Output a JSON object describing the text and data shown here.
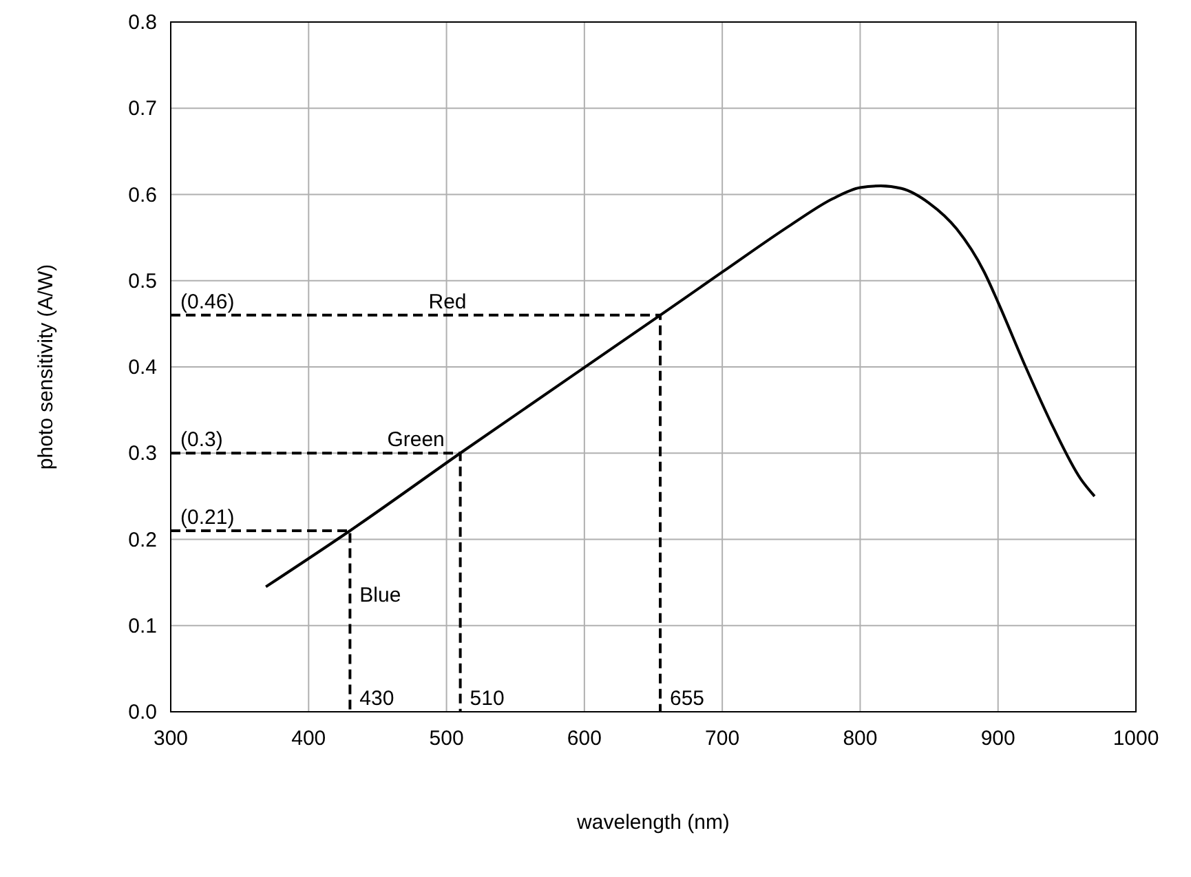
{
  "chart_data": {
    "type": "line",
    "xlabel": "wavelength (nm)",
    "ylabel": "photo sensitivity (A/W)",
    "xlim": [
      300,
      1000
    ],
    "ylim": [
      0,
      0.8
    ],
    "xticks": [
      300,
      400,
      500,
      600,
      700,
      800,
      900,
      1000
    ],
    "yticks": [
      {
        "value": 0,
        "label": "0.0"
      },
      {
        "value": 0.1,
        "label": "0.1"
      },
      {
        "value": 0.2,
        "label": "0.2"
      },
      {
        "value": 0.3,
        "label": "0.3"
      },
      {
        "value": 0.4,
        "label": "0.4"
      },
      {
        "value": 0.5,
        "label": "0.5"
      },
      {
        "value": 0.6,
        "label": "0.6"
      },
      {
        "value": 0.7,
        "label": "0.7"
      },
      {
        "value": 0.8,
        "label": "0.8"
      }
    ],
    "grid": true,
    "series": [
      {
        "color": "#000000",
        "line_style": "solid",
        "x": [
          369,
          430,
          510,
          655,
          700,
          750,
          780,
          800,
          815,
          830,
          850,
          870,
          890,
          900,
          920,
          940,
          960,
          970
        ],
        "values": [
          0.145,
          0.21,
          0.3,
          0.46,
          0.51,
          0.565,
          0.595,
          0.608,
          0.61,
          0.607,
          0.59,
          0.56,
          0.51,
          0.475,
          0.4,
          0.33,
          0.27,
          0.25
        ]
      },
      {
        "color": "#000000",
        "line_style": "dashed",
        "x": [
          300,
          430,
          430
        ],
        "values": [
          0.21,
          0.21,
          0
        ]
      },
      {
        "color": "#000000",
        "line_style": "dashed",
        "x": [
          300,
          510,
          510
        ],
        "values": [
          0.3,
          0.3,
          0
        ]
      },
      {
        "color": "#000000",
        "line_style": "dashed",
        "x": [
          300,
          655,
          655
        ],
        "values": [
          0.46,
          0.46,
          0
        ]
      }
    ],
    "annotations": [
      {
        "text": "(0.46)",
        "x": 300,
        "y": 0.46
      },
      {
        "text": "Red",
        "x": 480,
        "y": 0.46
      },
      {
        "text": "(0.3)",
        "x": 300,
        "y": 0.3
      },
      {
        "text": "Green",
        "x": 450,
        "y": 0.3
      },
      {
        "text": "(0.21)",
        "x": 300,
        "y": 0.21
      },
      {
        "text": "Blue",
        "x": 430,
        "y": 0.12
      },
      {
        "text": "430",
        "x": 430,
        "y": 0
      },
      {
        "text": "510",
        "x": 510,
        "y": 0
      },
      {
        "text": "655",
        "x": 655,
        "y": 0
      }
    ]
  }
}
